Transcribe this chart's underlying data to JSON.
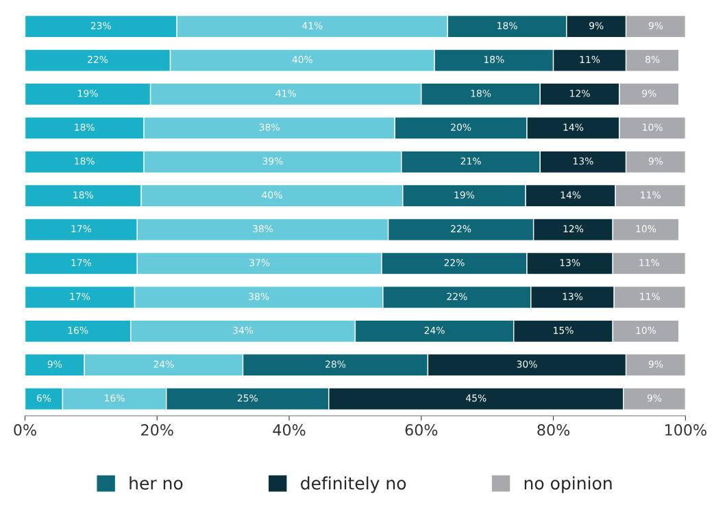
{
  "chart_data": {
    "type": "bar",
    "orientation": "horizontal",
    "stacked": true,
    "tick_labels": "x",
    "grid": false,
    "legend": "bottom",
    "categories": [
      null,
      null,
      null,
      null,
      null,
      null,
      null,
      null,
      null,
      null,
      null,
      null
    ],
    "series": [
      {
        "color": "#1ab0c8",
        "values": [
          23,
          22,
          19,
          18,
          18,
          17.6,
          17,
          17,
          16.6,
          16,
          9,
          5.7
        ],
        "value_labels": [
          "23%",
          "22%",
          "19%",
          "18%",
          "18%",
          "18%",
          "17%",
          "17%",
          "17%",
          "16%",
          "9%",
          "6%"
        ]
      },
      {
        "color": "#66cadb",
        "values": [
          41,
          40,
          41,
          38,
          39,
          39.6,
          38,
          37,
          37.6,
          34,
          24,
          15.7
        ],
        "value_labels": [
          "41%",
          "40%",
          "41%",
          "38%",
          "39%",
          "40%",
          "38%",
          "37%",
          "38%",
          "34%",
          "24%",
          "16%"
        ]
      },
      {
        "name": "her no",
        "color": "#0e6677",
        "values": [
          18,
          18,
          18,
          20,
          21,
          18.6,
          22,
          22,
          22.4,
          24,
          28,
          24.6
        ],
        "value_labels": [
          "18%",
          "18%",
          "18%",
          "20%",
          "21%",
          "19%",
          "22%",
          "22%",
          "22%",
          "24%",
          "28%",
          "25%"
        ]
      },
      {
        "name": "definitely no",
        "color": "#0a2f3a",
        "values": [
          9,
          11,
          12,
          14,
          13,
          13.6,
          12,
          13,
          12.6,
          15,
          30,
          44.6
        ],
        "value_labels": [
          "9%",
          "11%",
          "12%",
          "14%",
          "13%",
          "14%",
          "12%",
          "13%",
          "13%",
          "15%",
          "30%",
          "45%"
        ]
      },
      {
        "name": "no opinion",
        "color": "#a7a9ac",
        "values": [
          9,
          8,
          9,
          10,
          9,
          10.6,
          10,
          11,
          10.8,
          10,
          9,
          9.4
        ],
        "value_labels": [
          "9%",
          "8%",
          "9%",
          "10%",
          "9%",
          "11%",
          "10%",
          "11%",
          "11%",
          "10%",
          "9%",
          "9%"
        ]
      }
    ],
    "xlim": [
      0,
      100
    ],
    "xticks": [
      {
        "value": 0,
        "label": "0%"
      },
      {
        "value": 20,
        "label": "20%"
      },
      {
        "value": 40,
        "label": "40%"
      },
      {
        "value": 60,
        "label": "60%"
      },
      {
        "value": 80,
        "label": "80%"
      },
      {
        "value": 100,
        "label": "100%"
      }
    ]
  }
}
